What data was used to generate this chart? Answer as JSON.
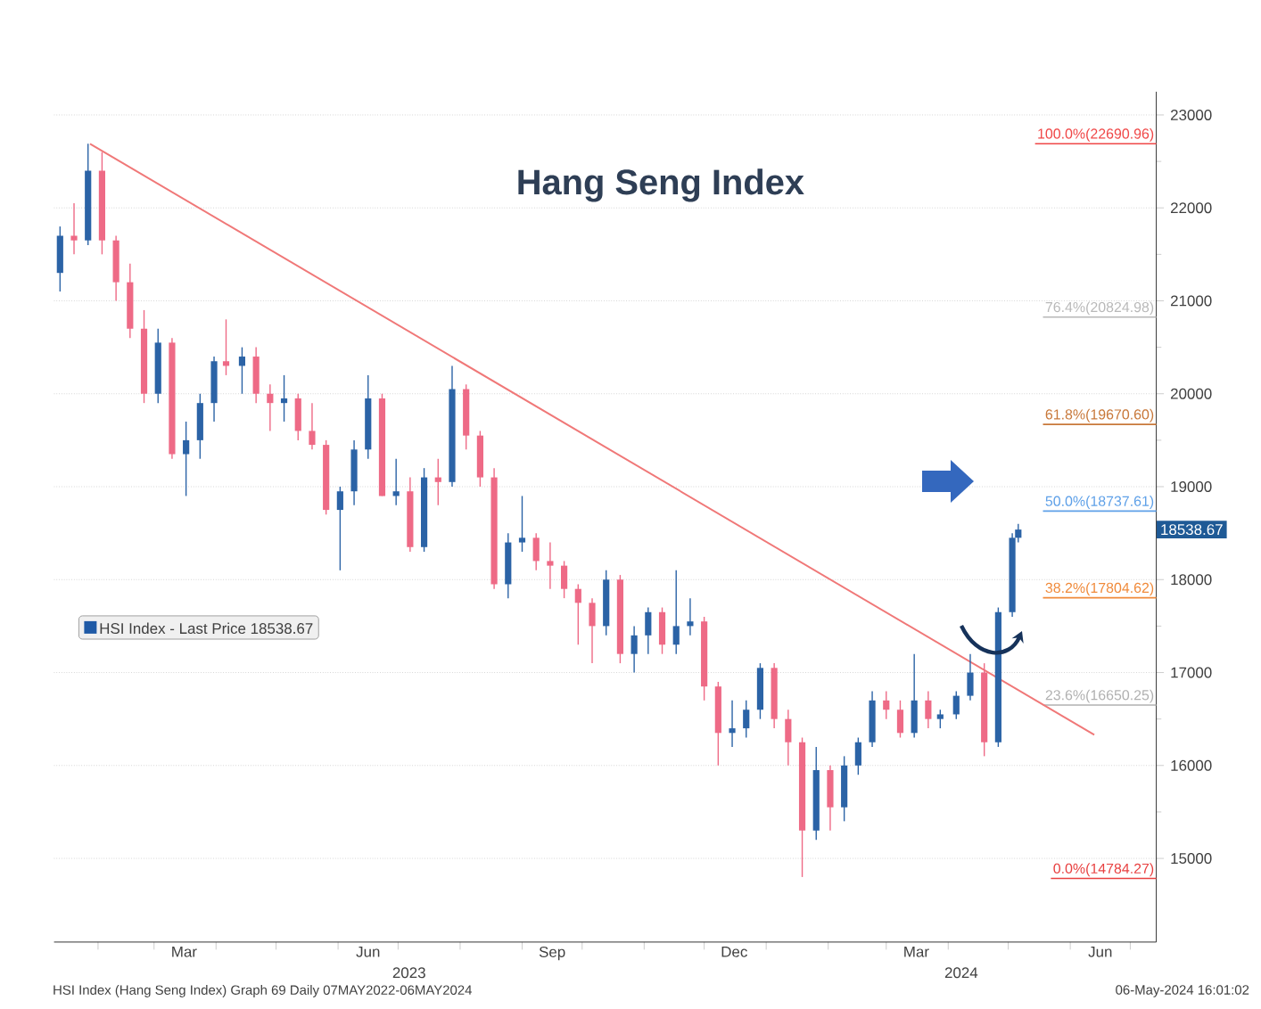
{
  "chart_data": {
    "type": "candlestick",
    "title": "Hang Seng Index",
    "xlim": [
      "2023-01-10",
      "2024-07-14"
    ],
    "ylim": [
      14100,
      23250
    ],
    "xticks": [
      {
        "value": "2023-02-01",
        "label": null
      },
      {
        "value": "2023-03-01",
        "label": null
      },
      {
        "value": "2023-04-01",
        "label": null
      },
      {
        "value": "2023-05-01",
        "label": null
      },
      {
        "value": "2023-06-01",
        "label": null
      },
      {
        "value": "2023-07-01",
        "label": null
      },
      {
        "value": "2023-08-01",
        "label": null
      },
      {
        "value": "2023-09-01",
        "label": null
      },
      {
        "value": "2023-10-01",
        "label": null
      },
      {
        "value": "2023-11-01",
        "label": null
      },
      {
        "value": "2023-12-01",
        "label": null
      },
      {
        "value": "2024-01-01",
        "label": null
      },
      {
        "value": "2024-02-01",
        "label": null
      },
      {
        "value": "2024-03-01",
        "label": null
      },
      {
        "value": "2024-04-01",
        "label": null
      },
      {
        "value": "2024-05-01",
        "label": null
      },
      {
        "value": "2024-06-01",
        "label": null
      },
      {
        "value": "2024-07-01",
        "label": null
      },
      {
        "value": "2023-03-16",
        "label": "Mar"
      },
      {
        "value": "2023-06-16",
        "label": "Jun"
      },
      {
        "value": "2023-09-16",
        "label": "Sep"
      },
      {
        "value": "2023-12-16",
        "label": "Dec"
      },
      {
        "value": "2024-03-16",
        "label": "Mar"
      },
      {
        "value": "2024-06-16",
        "label": "Jun"
      }
    ],
    "yticks": [
      15000,
      16000,
      17000,
      18000,
      19000,
      20000,
      21000,
      22000,
      23000
    ],
    "grid": "y",
    "legend": "left",
    "series": [
      {
        "name": "HSI Index - Last Price 18538.67",
        "color": "#1f5aa6",
        "x": [
          "2023-01-13",
          "2023-01-20",
          "2023-01-27",
          "2023-02-03",
          "2023-02-10",
          "2023-02-17",
          "2023-02-24",
          "2023-03-03",
          "2023-03-10",
          "2023-03-17",
          "2023-03-24",
          "2023-03-31",
          "2023-04-06",
          "2023-04-14",
          "2023-04-21",
          "2023-04-28",
          "2023-05-05",
          "2023-05-12",
          "2023-05-19",
          "2023-05-26",
          "2023-06-02",
          "2023-06-09",
          "2023-06-16",
          "2023-06-23",
          "2023-06-30",
          "2023-07-07",
          "2023-07-14",
          "2023-07-21",
          "2023-07-28",
          "2023-08-04",
          "2023-08-11",
          "2023-08-18",
          "2023-08-25",
          "2023-09-01",
          "2023-09-08",
          "2023-09-15",
          "2023-09-22",
          "2023-09-29",
          "2023-10-06",
          "2023-10-13",
          "2023-10-20",
          "2023-10-27",
          "2023-11-03",
          "2023-11-10",
          "2023-11-17",
          "2023-11-24",
          "2023-12-01",
          "2023-12-08",
          "2023-12-15",
          "2023-12-22",
          "2023-12-29",
          "2024-01-05",
          "2024-01-12",
          "2024-01-19",
          "2024-01-26",
          "2024-02-02",
          "2024-02-09",
          "2024-02-16",
          "2024-02-23",
          "2024-03-01",
          "2024-03-08",
          "2024-03-15",
          "2024-03-22",
          "2024-03-28",
          "2024-04-05",
          "2024-04-12",
          "2024-04-19",
          "2024-04-26",
          "2024-05-03",
          "2024-05-06"
        ],
        "ohlc": [
          [
            21300,
            21800,
            21100,
            21700
          ],
          [
            21700,
            22050,
            21500,
            21650
          ],
          [
            21650,
            22690,
            21600,
            22400
          ],
          [
            22400,
            22600,
            21500,
            21650
          ],
          [
            21650,
            21700,
            21000,
            21200
          ],
          [
            21200,
            21400,
            20600,
            20700
          ],
          [
            20700,
            20900,
            19900,
            20000
          ],
          [
            20000,
            20700,
            19900,
            20550
          ],
          [
            20550,
            20600,
            19300,
            19350
          ],
          [
            19350,
            19700,
            18900,
            19500
          ],
          [
            19500,
            20000,
            19300,
            19900
          ],
          [
            19900,
            20400,
            19700,
            20350
          ],
          [
            20350,
            20800,
            20200,
            20300
          ],
          [
            20300,
            20500,
            20000,
            20400
          ],
          [
            20400,
            20500,
            19900,
            20000
          ],
          [
            20000,
            20100,
            19600,
            19900
          ],
          [
            19900,
            20200,
            19700,
            19950
          ],
          [
            19950,
            20000,
            19500,
            19600
          ],
          [
            19600,
            19900,
            19400,
            19450
          ],
          [
            19450,
            19500,
            18700,
            18750
          ],
          [
            18750,
            19000,
            18100,
            18950
          ],
          [
            18950,
            19500,
            18800,
            19400
          ],
          [
            19400,
            20200,
            19300,
            19950
          ],
          [
            19950,
            20000,
            18900,
            18900
          ],
          [
            18900,
            19300,
            18800,
            18950
          ],
          [
            18950,
            19100,
            18300,
            18350
          ],
          [
            18350,
            19200,
            18300,
            19100
          ],
          [
            19100,
            19300,
            18800,
            19050
          ],
          [
            19050,
            20300,
            19000,
            20050
          ],
          [
            20050,
            20100,
            19400,
            19550
          ],
          [
            19550,
            19600,
            19000,
            19100
          ],
          [
            19100,
            19200,
            17900,
            17950
          ],
          [
            17950,
            18500,
            17800,
            18400
          ],
          [
            18400,
            18900,
            18300,
            18450
          ],
          [
            18450,
            18500,
            18100,
            18200
          ],
          [
            18200,
            18400,
            17900,
            18150
          ],
          [
            18150,
            18200,
            17800,
            17900
          ],
          [
            17900,
            17950,
            17300,
            17750
          ],
          [
            17750,
            17800,
            17100,
            17500
          ],
          [
            17500,
            18100,
            17400,
            18000
          ],
          [
            18000,
            18050,
            17100,
            17200
          ],
          [
            17200,
            17500,
            17000,
            17400
          ],
          [
            17400,
            17700,
            17200,
            17650
          ],
          [
            17650,
            17700,
            17200,
            17300
          ],
          [
            17300,
            18100,
            17200,
            17500
          ],
          [
            17500,
            17800,
            17400,
            17550
          ],
          [
            17550,
            17600,
            16700,
            16850
          ],
          [
            16850,
            16900,
            16000,
            16350
          ],
          [
            16350,
            16700,
            16200,
            16400
          ],
          [
            16400,
            16700,
            16300,
            16600
          ],
          [
            16600,
            17100,
            16500,
            17050
          ],
          [
            17050,
            17100,
            16400,
            16500
          ],
          [
            16500,
            16600,
            16000,
            16250
          ],
          [
            16250,
            16300,
            14800,
            15300
          ],
          [
            15300,
            16200,
            15200,
            15950
          ],
          [
            15950,
            16000,
            15300,
            15550
          ],
          [
            15550,
            16100,
            15400,
            16000
          ],
          [
            16000,
            16300,
            15900,
            16250
          ],
          [
            16250,
            16800,
            16200,
            16700
          ],
          [
            16700,
            16800,
            16500,
            16600
          ],
          [
            16600,
            16700,
            16300,
            16350
          ],
          [
            16350,
            17200,
            16300,
            16700
          ],
          [
            16700,
            16800,
            16400,
            16500
          ],
          [
            16500,
            16600,
            16400,
            16550
          ],
          [
            16550,
            16800,
            16500,
            16750
          ],
          [
            16750,
            17200,
            16700,
            17000
          ],
          [
            17000,
            17100,
            16100,
            16250
          ],
          [
            16250,
            17700,
            16200,
            17650
          ],
          [
            17650,
            18500,
            17600,
            18450
          ],
          [
            18450,
            18600,
            18400,
            18538.67
          ]
        ],
        "colors": [
          "#2b63a6",
          "#ee6a86",
          "#2b63a6",
          "#ee6a86",
          "#ee6a86",
          "#ee6a86",
          "#ee6a86",
          "#2b63a6",
          "#ee6a86",
          "#2b63a6",
          "#2b63a6",
          "#2b63a6",
          "#ee6a86",
          "#2b63a6",
          "#ee6a86",
          "#ee6a86",
          "#2b63a6",
          "#ee6a86",
          "#ee6a86",
          "#ee6a86",
          "#2b63a6",
          "#2b63a6",
          "#2b63a6",
          "#ee6a86",
          "#2b63a6",
          "#ee6a86",
          "#2b63a6",
          "#ee6a86",
          "#2b63a6",
          "#ee6a86",
          "#ee6a86",
          "#ee6a86",
          "#2b63a6",
          "#2b63a6",
          "#ee6a86",
          "#ee6a86",
          "#ee6a86",
          "#ee6a86",
          "#ee6a86",
          "#2b63a6",
          "#ee6a86",
          "#2b63a6",
          "#2b63a6",
          "#ee6a86",
          "#2b63a6",
          "#2b63a6",
          "#ee6a86",
          "#ee6a86",
          "#2b63a6",
          "#2b63a6",
          "#2b63a6",
          "#ee6a86",
          "#ee6a86",
          "#ee6a86",
          "#2b63a6",
          "#ee6a86",
          "#2b63a6",
          "#2b63a6",
          "#2b63a6",
          "#ee6a86",
          "#ee6a86",
          "#2b63a6",
          "#ee6a86",
          "#2b63a6",
          "#2b63a6",
          "#2b63a6",
          "#ee6a86",
          "#2b63a6",
          "#2b63a6",
          "#2b63a6"
        ]
      },
      {
        "type": "line",
        "color": "#f07878",
        "x": [
          "2023-01-28",
          "2024-06-13"
        ],
        "values": [
          22690,
          16330
        ]
      }
    ],
    "ref_lines": [
      {
        "axis": "y",
        "value": 22690.96,
        "label": "100.0%(22690.96)",
        "color": "#f04848"
      },
      {
        "axis": "y",
        "value": 20824.98,
        "label": "76.4%(20824.98)",
        "color": "#b8b8b8"
      },
      {
        "axis": "y",
        "value": 19670.6,
        "label": "61.8%(19670.60)",
        "color": "#c8783a"
      },
      {
        "axis": "y",
        "value": 18737.61,
        "label": "50.0%(18737.61)",
        "color": "#5ea0e8"
      },
      {
        "axis": "y",
        "value": 17804.62,
        "label": "38.2%(17804.62)",
        "color": "#f08a3a"
      },
      {
        "axis": "y",
        "value": 16650.25,
        "label": "23.6%(16650.25)",
        "color": "#b0b0b0"
      },
      {
        "axis": "y",
        "value": 14784.27,
        "label": "0.0%(14784.27)",
        "color": "#e84040"
      }
    ],
    "annotations": [
      "18538.67",
      "2023",
      "2024",
      "HSI Index (Hang Seng Index) Graph 69  Daily 07MAY2022-06MAY2024",
      "06-May-2024 16:01:02"
    ]
  }
}
